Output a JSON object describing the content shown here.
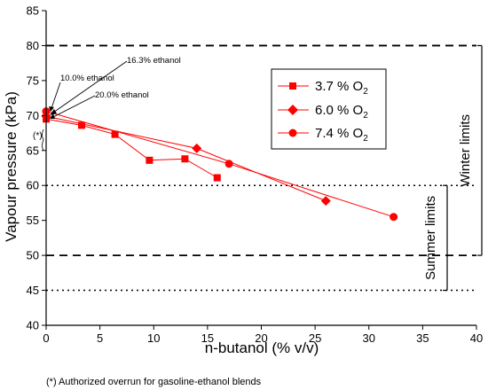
{
  "chart_data": {
    "type": "scatter",
    "xlabel": "n-butanol (% v/v)",
    "ylabel": "Vapour pressure (kPa)",
    "xlim": [
      0,
      40
    ],
    "ylim": [
      40,
      85
    ],
    "x_ticks": [
      "0",
      "5",
      "10",
      "15",
      "20",
      "25",
      "30",
      "35",
      "40"
    ],
    "y_ticks": [
      "40",
      "45",
      "50",
      "55",
      "60",
      "65",
      "70",
      "75",
      "80",
      "85"
    ],
    "grid": false,
    "legend_position": "upper-right inside plot",
    "series_color": "#ff0000",
    "series": [
      {
        "name": "3.7 % O",
        "subscript": "2",
        "marker": "square",
        "points": [
          {
            "x": 0,
            "y": 69.5
          },
          {
            "x": 3.3,
            "y": 68.6
          },
          {
            "x": 6.4,
            "y": 67.3
          },
          {
            "x": 9.6,
            "y": 63.6
          },
          {
            "x": 12.9,
            "y": 63.8
          },
          {
            "x": 15.9,
            "y": 61.1
          }
        ]
      },
      {
        "name": "6.0 % O",
        "subscript": "2",
        "marker": "diamond",
        "points": [
          {
            "x": 0,
            "y": 69.9
          },
          {
            "x": 14.0,
            "y": 65.3
          },
          {
            "x": 26.0,
            "y": 57.8
          }
        ]
      },
      {
        "name": "7.4 % O",
        "subscript": "2",
        "marker": "circle",
        "points": [
          {
            "x": 0,
            "y": 70.6
          },
          {
            "x": 17.0,
            "y": 63.1
          },
          {
            "x": 32.3,
            "y": 55.5
          }
        ]
      }
    ],
    "reference_lines": [
      {
        "y": 80,
        "style": "dashed"
      },
      {
        "y": 60,
        "style": "dotted"
      },
      {
        "y": 50,
        "style": "dashed"
      },
      {
        "y": 45,
        "style": "dotted"
      }
    ],
    "limit_brackets": [
      {
        "label": "Winter limits",
        "y_top": 80,
        "y_bottom": 50
      },
      {
        "label": "Summer limits",
        "y_top": 60,
        "y_bottom": 45
      }
    ],
    "annotations": [
      {
        "text": "16.3% ethanol"
      },
      {
        "text": "10.0% ethanol"
      },
      {
        "text": "20.0% ethanol"
      }
    ],
    "star_note": "(*)",
    "footnote": "(*) Authorized overrun for gasoline-ethanol blends"
  }
}
